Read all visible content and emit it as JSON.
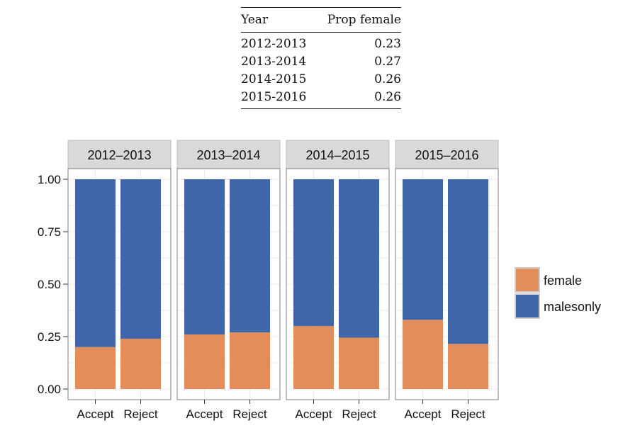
{
  "summary_table": {
    "headers": [
      "Year",
      "Prop female"
    ],
    "rows": [
      [
        "2012-2013",
        "0.23"
      ],
      [
        "2013-2014",
        "0.27"
      ],
      [
        "2014-2015",
        "0.26"
      ],
      [
        "2015-2016",
        "0.26"
      ]
    ]
  },
  "chart_data": {
    "type": "bar",
    "stacked": true,
    "title": "",
    "xlabel": "",
    "ylabel": "",
    "ylim": [
      0,
      1
    ],
    "yticks": [
      "0.00",
      "0.25",
      "0.50",
      "0.75",
      "1.00"
    ],
    "grid": true,
    "legend_position": "right",
    "facets": [
      {
        "label": "2012–2013",
        "categories": [
          "Accept",
          "Reject"
        ],
        "series": [
          {
            "name": "female",
            "values": [
              0.2,
              0.24
            ]
          },
          {
            "name": "malesonly",
            "values": [
              0.8,
              0.76
            ]
          }
        ]
      },
      {
        "label": "2013–2014",
        "categories": [
          "Accept",
          "Reject"
        ],
        "series": [
          {
            "name": "female",
            "values": [
              0.26,
              0.27
            ]
          },
          {
            "name": "malesonly",
            "values": [
              0.74,
              0.73
            ]
          }
        ]
      },
      {
        "label": "2014–2015",
        "categories": [
          "Accept",
          "Reject"
        ],
        "series": [
          {
            "name": "female",
            "values": [
              0.3,
              0.245
            ]
          },
          {
            "name": "malesonly",
            "values": [
              0.7,
              0.755
            ]
          }
        ]
      },
      {
        "label": "2015–2016",
        "categories": [
          "Accept",
          "Reject"
        ],
        "series": [
          {
            "name": "female",
            "values": [
              0.33,
              0.215
            ]
          },
          {
            "name": "malesonly",
            "values": [
              0.67,
              0.785
            ]
          }
        ]
      }
    ],
    "legend": [
      {
        "name": "female",
        "color": "#e38d5b"
      },
      {
        "name": "malesonly",
        "color": "#3f66a9"
      }
    ],
    "colors": {
      "female": "#e38d5b",
      "malesonly": "#3f66a9",
      "strip": "#d9d9d9",
      "grid": "#ebebeb",
      "panel_border": "#7f7f7f"
    }
  }
}
